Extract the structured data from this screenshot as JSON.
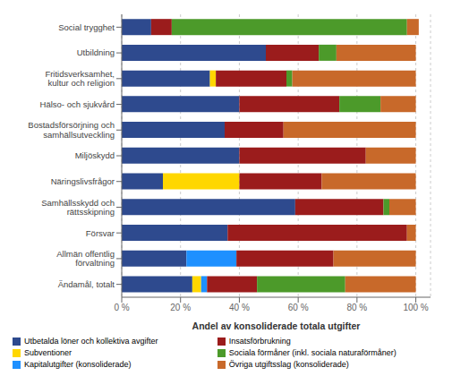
{
  "chart_data": {
    "type": "bar",
    "orientation": "horizontal",
    "stacked": true,
    "categories": [
      "Social trygghet",
      "Utbildning",
      "Fritidsverksamhet,\nkultur och religion",
      "Hälso- och sjukvård",
      "Bostadsförsörjning och\nsamhällsutveckling",
      "Miljöskydd",
      "Näringslivsfrågor",
      "Samhällsskydd och\nrättsskipning",
      "Försvar",
      "Allmän offentlig\nförvaltning",
      "Ändamål, totalt"
    ],
    "series": [
      {
        "name": "Utbetalda löner och kollektiva avgifter",
        "color": "#2E4A8E",
        "values": [
          10,
          49,
          30,
          40,
          35,
          40,
          14,
          59,
          36,
          22,
          24
        ]
      },
      {
        "name": "Subventioner",
        "color": "#FFD700",
        "values": [
          0,
          0,
          2,
          0,
          0,
          0,
          26,
          0,
          0,
          0,
          3
        ]
      },
      {
        "name": "Kapitalutgifter (konsoliderade)",
        "color": "#1E90FF",
        "values": [
          0,
          0,
          0,
          0,
          0,
          0,
          0,
          0,
          0,
          17,
          2
        ]
      },
      {
        "name": "Insatsförbrukning",
        "color": "#9B1C1C",
        "values": [
          7,
          18,
          24,
          34,
          20,
          43,
          28,
          30,
          61,
          33,
          17
        ]
      },
      {
        "name": "Sociala förmåner (inkl. sociala naturaförmåner)",
        "color": "#4C9A2A",
        "values": [
          80,
          6,
          2,
          14,
          0,
          0,
          0,
          2,
          0,
          0,
          30
        ]
      },
      {
        "name": "Övriga utgiftsslag (konsoliderade)",
        "color": "#C8692A",
        "values": [
          4,
          27,
          42,
          12,
          45,
          17,
          32,
          9,
          3,
          28,
          24
        ]
      }
    ],
    "xlabel": "Andel av konsoliderade totala utgifter",
    "xlim": [
      0,
      105
    ],
    "xticks": [
      {
        "value": 0,
        "label": "0 %"
      },
      {
        "value": 20,
        "label": "20 %"
      },
      {
        "value": 40,
        "label": "40 %"
      },
      {
        "value": 60,
        "label": "60 %"
      },
      {
        "value": 80,
        "label": "80 %"
      },
      {
        "value": 100,
        "label": "100 %"
      }
    ],
    "grid": true,
    "legend": "bottom"
  }
}
